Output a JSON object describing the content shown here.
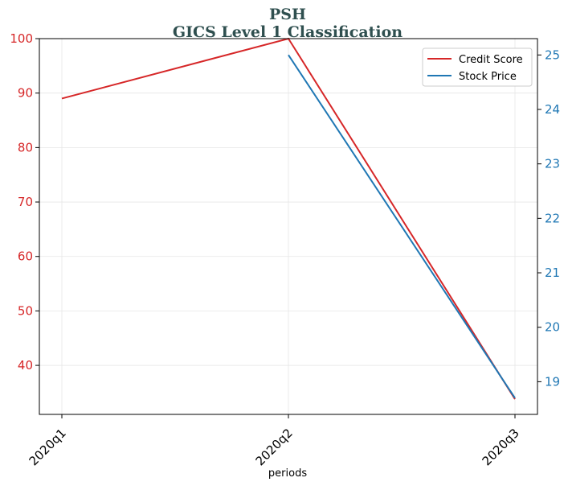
{
  "chart_data": {
    "type": "line",
    "title": "PSH",
    "subtitle": "GICS Level 1 Classification",
    "xlabel": "periods",
    "categories": [
      "2020q1",
      "2020q2",
      "2020q3"
    ],
    "y_left": {
      "ylim": [
        31,
        100
      ],
      "ticks": [
        40,
        50,
        60,
        70,
        80,
        90,
        100
      ],
      "color": "#d62728"
    },
    "y_right": {
      "ylim": [
        18.4,
        25.3
      ],
      "ticks": [
        19,
        20,
        21,
        22,
        23,
        24,
        25
      ],
      "color": "#1f77b4"
    },
    "series": [
      {
        "name": "Credit Score",
        "axis": "left",
        "color": "#d62728",
        "values": [
          89,
          100,
          33.8
        ]
      },
      {
        "name": "Stock Price",
        "axis": "right",
        "color": "#1f77b4",
        "values": [
          null,
          25.0,
          18.7
        ]
      }
    ],
    "grid": true,
    "legend": "top-right"
  }
}
